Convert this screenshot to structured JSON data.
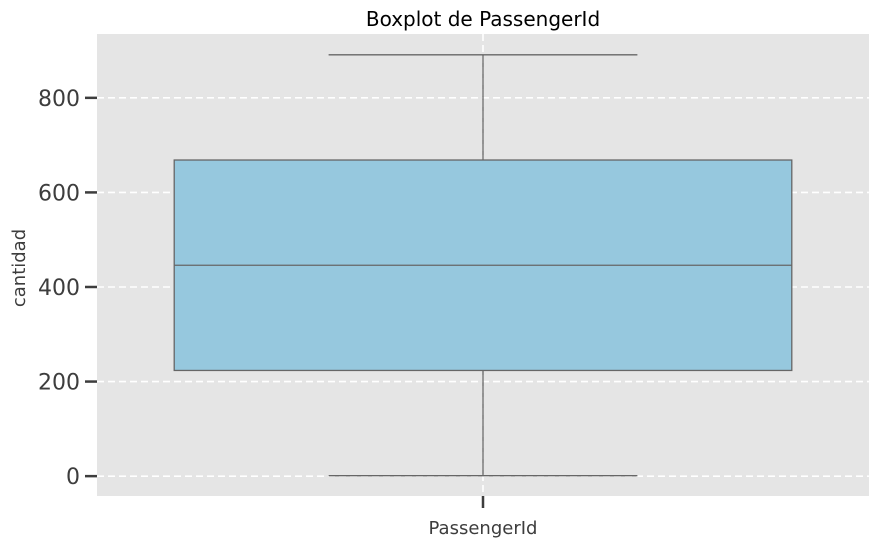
{
  "chart_data": {
    "type": "boxplot",
    "title": "Boxplot de PassengerId",
    "xlabel": "PassengerId",
    "ylabel": "cantidad",
    "categories": [
      "PassengerId"
    ],
    "boxes": [
      {
        "name": "PassengerId",
        "min": 1,
        "q1": 223.5,
        "median": 446,
        "q3": 668.5,
        "max": 891
      }
    ],
    "ylim": [
      -42,
      935
    ],
    "yticks": [
      0,
      200,
      400,
      600,
      800
    ],
    "grid": true,
    "colors": {
      "box_fill": "#96c8de",
      "box_edge": "#666666",
      "plot_background": "#e5e5e5",
      "grid": "#ffffff",
      "tick": "#3d3d3d"
    }
  }
}
